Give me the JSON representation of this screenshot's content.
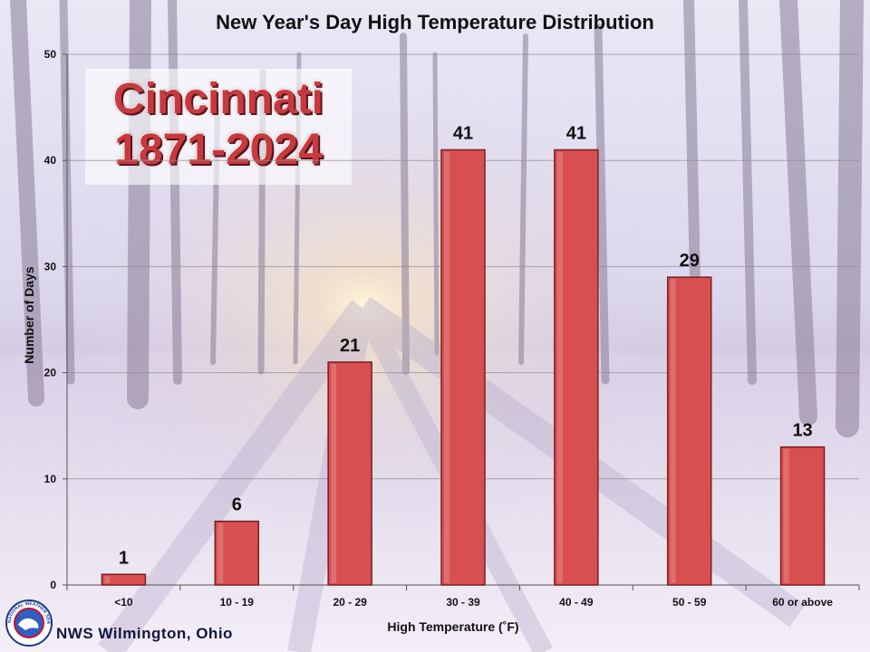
{
  "chart_data": {
    "type": "bar",
    "title": "New Year's Day High Temperature Distribution",
    "xlabel": "High Temperature (˚F)",
    "ylabel": "Number of Days",
    "categories": [
      "<10",
      "10 - 19",
      "20 - 29",
      "30 - 39",
      "40 - 49",
      "50 - 59",
      "60 or above"
    ],
    "values": [
      1,
      6,
      21,
      41,
      41,
      29,
      13
    ],
    "ylim": [
      0,
      50
    ],
    "yticks": [
      0,
      10,
      20,
      30,
      40,
      50
    ],
    "grid": true,
    "bar_color": "#d84f4f",
    "data_labels": true
  },
  "overlay": {
    "city": "Cincinnati",
    "years": "1871-2024",
    "text_color": "#c63a3f"
  },
  "footer": {
    "org": "NWS Wilmington, Ohio",
    "logo_icon": "nws-logo-icon",
    "logo_text": "NATIONAL WEATHER SERVICE"
  }
}
